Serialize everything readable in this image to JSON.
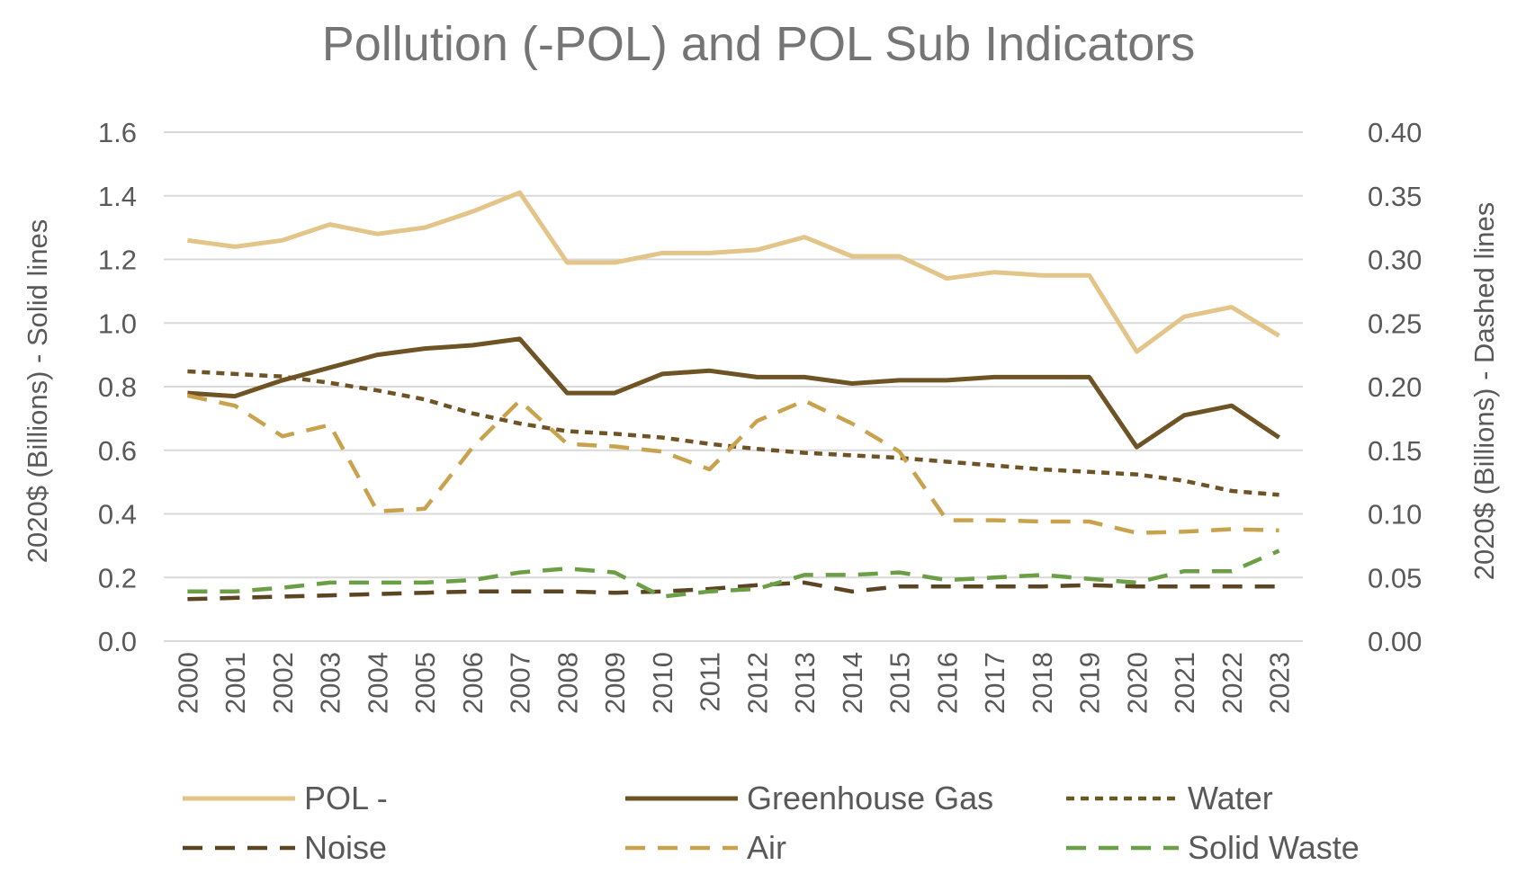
{
  "chart_data": {
    "type": "line",
    "title": "Pollution (-POL) and POL Sub Indicators",
    "ylabel_left": "2020$ (Billions) - Solid lines",
    "ylabel_right": "2020$ (Billions) - Dashed lines",
    "ylim_left": [
      0,
      1.6
    ],
    "ylim_right": [
      0,
      0.4
    ],
    "yticks_left": [
      "0.0",
      "0.2",
      "0.4",
      "0.6",
      "0.8",
      "1.0",
      "1.2",
      "1.4",
      "1.6"
    ],
    "yticks_right": [
      "0.00",
      "0.05",
      "0.10",
      "0.15",
      "0.20",
      "0.25",
      "0.30",
      "0.35",
      "0.40"
    ],
    "grid": true,
    "legend_position": "bottom",
    "x": [
      "2000",
      "2001",
      "2002",
      "2003",
      "2004",
      "2005",
      "2006",
      "2007",
      "2008",
      "2009",
      "2010",
      "2011",
      "2012",
      "2013",
      "2014",
      "2015",
      "2016",
      "2017",
      "2018",
      "2019",
      "2020",
      "2021",
      "2022",
      "2023"
    ],
    "series": [
      {
        "name": "POL -",
        "axis": "left",
        "style": "solid",
        "color": "#E3C58A",
        "values": [
          1.26,
          1.24,
          1.26,
          1.31,
          1.28,
          1.3,
          1.35,
          1.41,
          1.19,
          1.19,
          1.22,
          1.22,
          1.23,
          1.27,
          1.21,
          1.21,
          1.14,
          1.16,
          1.15,
          1.15,
          0.91,
          1.02,
          1.05,
          0.96
        ]
      },
      {
        "name": "Greenhouse Gas",
        "axis": "left",
        "style": "solid",
        "color": "#6E5324",
        "values": [
          0.78,
          0.77,
          0.82,
          0.86,
          0.9,
          0.92,
          0.93,
          0.95,
          0.78,
          0.78,
          0.84,
          0.85,
          0.83,
          0.83,
          0.81,
          0.82,
          0.82,
          0.83,
          0.83,
          0.83,
          0.61,
          0.71,
          0.74,
          0.64
        ]
      },
      {
        "name": "Water",
        "axis": "right",
        "style": "dotted",
        "color": "#6E5324",
        "values": [
          0.212,
          0.21,
          0.208,
          0.203,
          0.197,
          0.19,
          0.179,
          0.171,
          0.165,
          0.163,
          0.16,
          0.155,
          0.151,
          0.148,
          0.146,
          0.144,
          0.141,
          0.138,
          0.135,
          0.133,
          0.131,
          0.126,
          0.118,
          0.115
        ]
      },
      {
        "name": "Noise",
        "axis": "right",
        "style": "dashed",
        "color": "#5C4522",
        "values": [
          0.033,
          0.034,
          0.035,
          0.036,
          0.037,
          0.038,
          0.039,
          0.039,
          0.039,
          0.038,
          0.039,
          0.041,
          0.044,
          0.046,
          0.039,
          0.043,
          0.043,
          0.043,
          0.043,
          0.044,
          0.043,
          0.043,
          0.043,
          0.043
        ]
      },
      {
        "name": "Air",
        "axis": "right",
        "style": "dashed",
        "color": "#C9A24D",
        "values": [
          0.193,
          0.185,
          0.161,
          0.17,
          0.102,
          0.104,
          0.152,
          0.189,
          0.155,
          0.153,
          0.149,
          0.135,
          0.173,
          0.189,
          0.171,
          0.149,
          0.095,
          0.095,
          0.094,
          0.094,
          0.085,
          0.086,
          0.088,
          0.087
        ]
      },
      {
        "name": "Solid Waste",
        "axis": "right",
        "style": "dashed",
        "color": "#6A9F45",
        "values": [
          0.039,
          0.039,
          0.042,
          0.046,
          0.046,
          0.046,
          0.048,
          0.054,
          0.057,
          0.054,
          0.035,
          0.039,
          0.041,
          0.052,
          0.052,
          0.054,
          0.048,
          0.05,
          0.052,
          0.049,
          0.046,
          0.055,
          0.055,
          0.071
        ]
      }
    ]
  }
}
